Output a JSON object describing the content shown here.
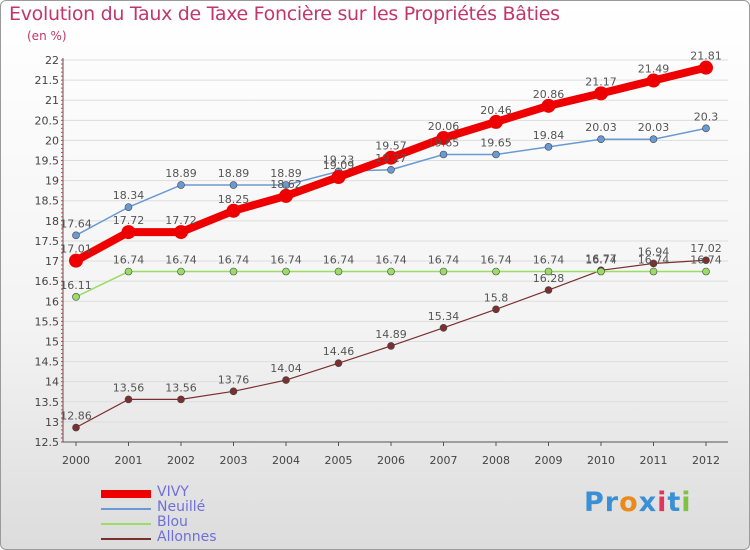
{
  "header": {
    "title": "Evolution du Taux de Taxe Foncière sur les Propriétés Bâties",
    "unit": "(en %)"
  },
  "chart_data": {
    "type": "line",
    "x": [
      "2000",
      "2001",
      "2002",
      "2003",
      "2004",
      "2005",
      "2006",
      "2007",
      "2008",
      "2009",
      "2010",
      "2011",
      "2012"
    ],
    "ylim": [
      12.5,
      22
    ],
    "yticks": [
      "12.5",
      "13",
      "13.5",
      "14",
      "14.5",
      "15",
      "15.5",
      "16",
      "16.5",
      "17",
      "17.5",
      "18",
      "18.5",
      "19",
      "19.5",
      "20",
      "20.5",
      "21",
      "21.5",
      "22"
    ],
    "grid": "horizontal",
    "legend_position": "bottom-left",
    "series": [
      {
        "name": "VIVY",
        "color": "#ee0000",
        "values": [
          17.01,
          17.72,
          17.72,
          18.25,
          18.62,
          19.09,
          19.57,
          20.06,
          20.46,
          20.86,
          21.17,
          21.49,
          21.81
        ],
        "labels": [
          "17.01",
          "17.72",
          "17.72",
          "18.25",
          "18.62",
          "19.09",
          "19.57",
          "20.06",
          "20.46",
          "20.86",
          "21.17",
          "21.49",
          "21.81"
        ]
      },
      {
        "name": "Neuillé",
        "color": "#6a9ad4",
        "values": [
          17.64,
          18.34,
          18.89,
          18.89,
          18.89,
          19.23,
          19.27,
          19.65,
          19.65,
          19.84,
          20.03,
          20.03,
          20.3
        ],
        "labels": [
          "17.64",
          "18.34",
          "18.89",
          "18.89",
          "18.89",
          "19.23",
          "19.27",
          "19.65",
          "19.65",
          "19.84",
          "20.03",
          "20.03",
          "20.3"
        ]
      },
      {
        "name": "Blou",
        "color": "#99dd66",
        "values": [
          16.11,
          16.74,
          16.74,
          16.74,
          16.74,
          16.74,
          16.74,
          16.74,
          16.74,
          16.74,
          16.74,
          16.74,
          16.74
        ],
        "labels": [
          "16.11",
          "16.74",
          "16.74",
          "16.74",
          "16.74",
          "16.74",
          "16.74",
          "16.74",
          "16.74",
          "16.74",
          "16.74",
          "16.74",
          "16.74"
        ]
      },
      {
        "name": "Allonnes",
        "color": "#7a3030",
        "values": [
          12.86,
          13.56,
          13.56,
          13.76,
          14.04,
          14.46,
          14.89,
          15.34,
          15.8,
          16.28,
          16.77,
          16.94,
          17.02
        ],
        "labels": [
          "12.86",
          "13.56",
          "13.56",
          "13.76",
          "14.04",
          "14.46",
          "14.89",
          "15.34",
          "15.8",
          "16.28",
          "16.77",
          "16.94",
          "17.02"
        ]
      }
    ]
  },
  "legend": {
    "items": [
      {
        "label": "VIVY",
        "color": "#ee0000"
      },
      {
        "label": "Neuillé",
        "color": "#6a9ad4"
      },
      {
        "label": "Blou",
        "color": "#99dd66"
      },
      {
        "label": "Allonnes",
        "color": "#7a3030"
      }
    ]
  },
  "brand": {
    "text": "Proxiti",
    "letters": [
      {
        "char": "P",
        "color": "#3b8fd4"
      },
      {
        "char": "r",
        "color": "#3b8fd4"
      },
      {
        "char": "o",
        "color": "#e98a1a"
      },
      {
        "char": "x",
        "color": "#3b8fd4"
      },
      {
        "char": "i",
        "color": "#e0335f"
      },
      {
        "char": "t",
        "color": "#3b8fd4"
      },
      {
        "char": "i",
        "color": "#7fc242"
      }
    ]
  }
}
